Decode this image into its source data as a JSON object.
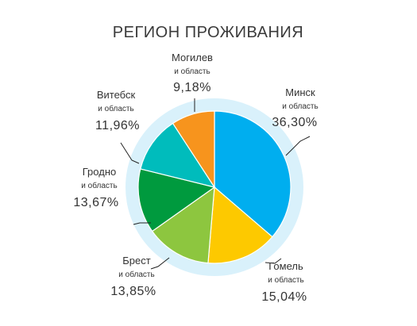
{
  "chart_data": {
    "type": "pie",
    "title": "РЕГИОН ПРОЖИВАНИЯ",
    "colors": {
      "ring": "#d9f1fb",
      "Минск": "#00aeef",
      "Гомель": "#fdc900",
      "Брест": "#8dc63f",
      "Гродно": "#009a3e",
      "Витебск": "#00bcbc",
      "Могилев": "#f7941d"
    },
    "slices": [
      {
        "name": "Минск",
        "sub": "и область",
        "value": 36.3,
        "label": "36,30%"
      },
      {
        "name": "Гомель",
        "sub": "и область",
        "value": 15.04,
        "label": "15,04%"
      },
      {
        "name": "Брест",
        "sub": "и область",
        "value": 13.85,
        "label": "13,85%"
      },
      {
        "name": "Гродно",
        "sub": "и область",
        "value": 13.67,
        "label": "13,67%"
      },
      {
        "name": "Витебск",
        "sub": "и область",
        "value": 11.96,
        "label": "11,96%"
      },
      {
        "name": "Могилев",
        "sub": "и область",
        "value": 9.18,
        "label": "9,18%"
      }
    ]
  }
}
